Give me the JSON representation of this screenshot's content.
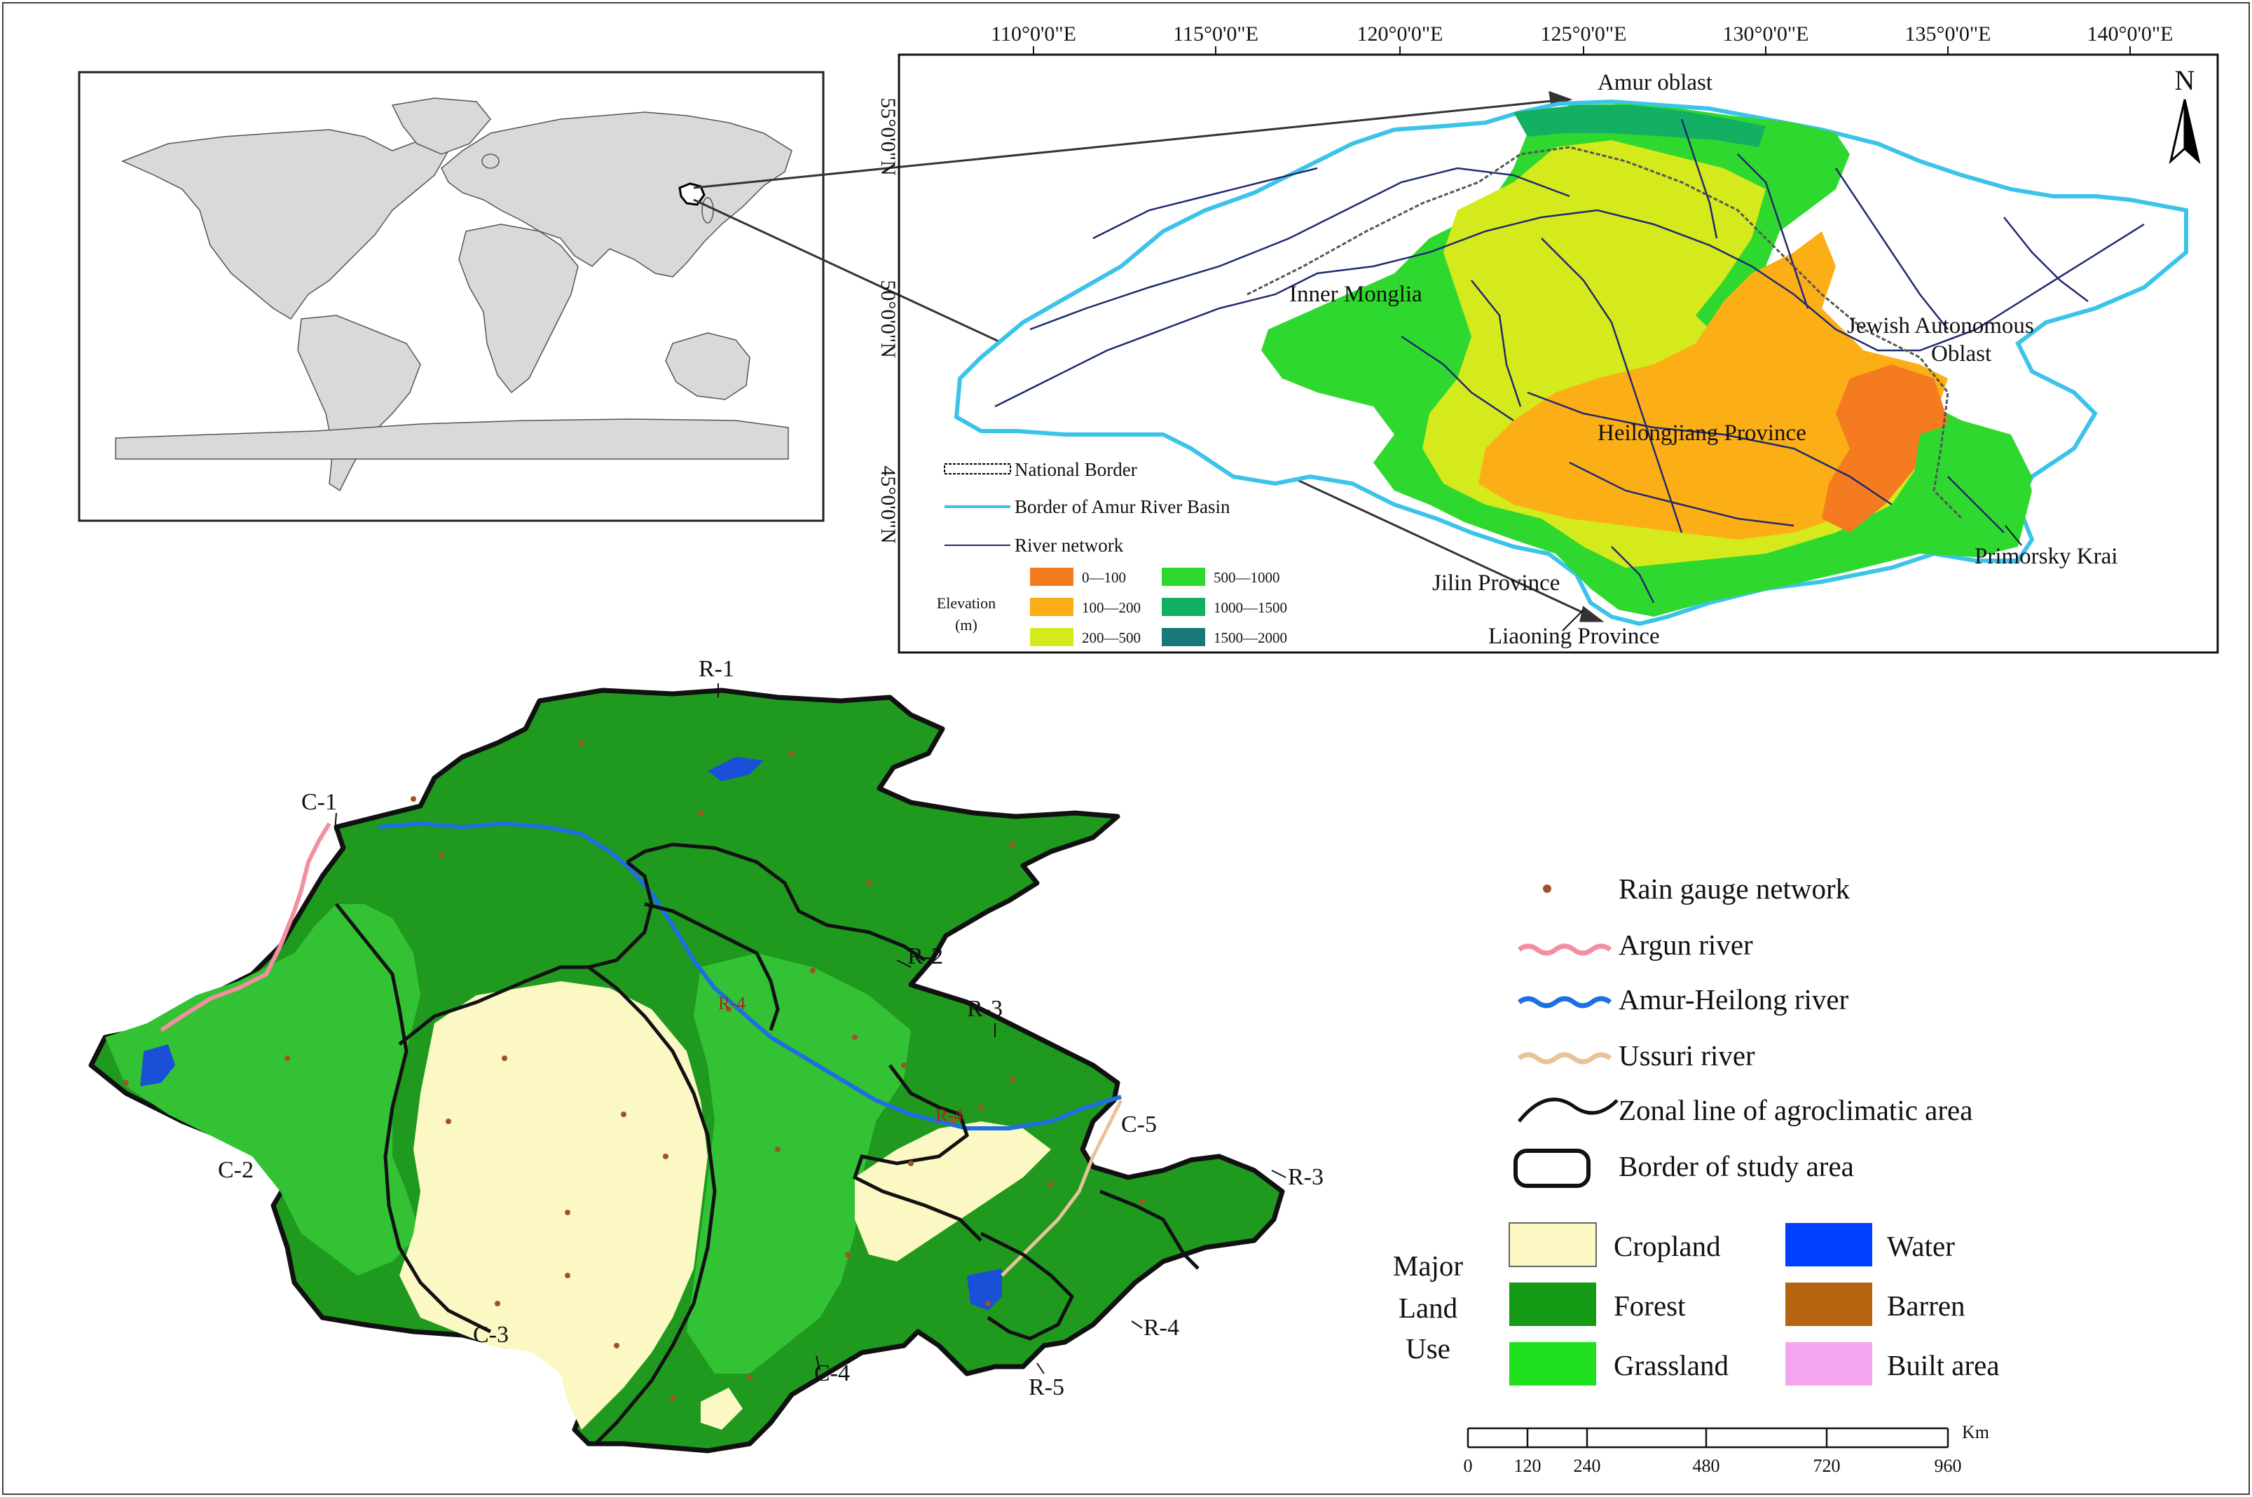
{
  "world_map": {},
  "basin_map": {
    "lon_ticks": [
      "110°0'0\"E",
      "115°0'0\"E",
      "120°0'0\"E",
      "125°0'0\"E",
      "130°0'0\"E",
      "135°0'0\"E",
      "140°0'0\"E"
    ],
    "lat_ticks": [
      "55°0'0\"N",
      "50°0'0\"N",
      "45°0'0\"N"
    ],
    "north_label": "N",
    "places": {
      "amur_oblast": "Amur oblast",
      "inner_monglia": "Inner Monglia",
      "jewish_1": "Jewish Autonomous",
      "jewish_2": "Oblast",
      "heilongjiang": "Heilongjiang Province",
      "jilin": "Jilin Province",
      "liaoning": "Liaoning Province",
      "primorsky": "Primorsky Krai"
    },
    "legend": {
      "national_border": "National Border",
      "basin_border": "Border of Amur River Basin",
      "river_network": "River network",
      "elevation_title_1": "Elevation",
      "elevation_title_2": "(m)",
      "classes": [
        {
          "label": "0—100",
          "color": "#f47b20"
        },
        {
          "label": "100—200",
          "color": "#fcae17"
        },
        {
          "label": "200—500",
          "color": "#d4ea1c"
        },
        {
          "label": "500—1000",
          "color": "#2fd82f"
        },
        {
          "label": "1000—1500",
          "color": "#13b063"
        },
        {
          "label": "1500—2000",
          "color": "#177a78"
        }
      ],
      "basin_border_color": "#3cc3e8",
      "river_color": "#1f2a6e"
    }
  },
  "study_map": {
    "region_labels": {
      "r1": "R-1",
      "c1": "C-1",
      "r2": "R-2",
      "r3a": "R-3",
      "r3b": "R-3",
      "c2": "C-2",
      "c5": "C-5",
      "c3": "C-3",
      "c4": "C-4",
      "r4": "R-4",
      "r5": "R-5",
      "inner_r4a": "R-4",
      "inner_r4b": "R-4"
    },
    "colors": {
      "forest": "#1f9a1f",
      "grassland": "#33c233",
      "cropland": "#fbf8c3",
      "water": "#1a4fd8",
      "argun": "#f28fa0",
      "amur": "#1e6fe0",
      "ussuri": "#e9c29a",
      "gauge": "#a0522d"
    }
  },
  "legend_right": {
    "rain_gauge": "Rain gauge network",
    "argun_river": "Argun river",
    "amur_river": "Amur-Heilong river",
    "ussuri_river": "Ussuri river",
    "zonal_line": "Zonal line of agroclimatic area",
    "border_study": "Border of study area",
    "land_use_title": [
      "Major",
      "Land",
      "Use"
    ],
    "land_use": [
      {
        "label": "Cropland",
        "color": "#fbf8c3"
      },
      {
        "label": "Water",
        "color": "#0040ff"
      },
      {
        "label": "Forest",
        "color": "#149a14"
      },
      {
        "label": "Barren",
        "color": "#b5650f"
      },
      {
        "label": "Grassland",
        "color": "#1fe01f"
      },
      {
        "label": "Built area",
        "color": "#f4a6f0"
      }
    ]
  },
  "scale_bar": {
    "unit": "Km",
    "ticks": [
      "0",
      "120",
      "240",
      "480",
      "720",
      "960"
    ]
  }
}
